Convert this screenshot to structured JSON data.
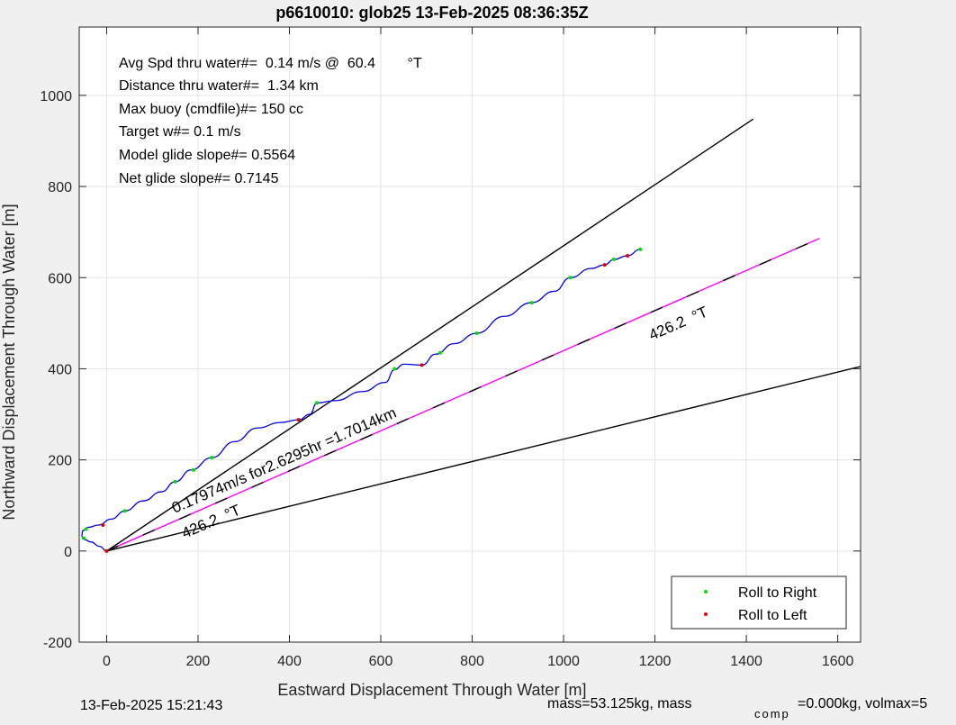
{
  "chart_data": {
    "type": "line",
    "title": "p6610010: glob25 13-Feb-2025 08:36:35Z",
    "xlabel": "Eastward Displacement Through Water [m]",
    "ylabel": "Northward Displacement Through Water [m]",
    "xlim": [
      -60,
      1650
    ],
    "ylim": [
      -200,
      1150
    ],
    "xticks": [
      0,
      200,
      400,
      600,
      800,
      1000,
      1200,
      1400,
      1600
    ],
    "yticks": [
      -200,
      0,
      200,
      400,
      600,
      800,
      1000
    ],
    "grid": true,
    "info_lines": [
      "Avg Spd thru water#=  0.14 m/s @  60.4        °T",
      "Distance thru water#=  1.34 km",
      "Max buoy (cmdfile)#= 150 cc",
      "Target w#= 0.1 m/s",
      "Model glide slope#= 0.5564",
      "Net glide slope#= 0.7145"
    ],
    "annotations": {
      "speed_label": "0.17974m/s for2.6295hr =1.7014km",
      "heading_label_1": "426.2  °T",
      "heading_label_2": "426.2  °T"
    },
    "footer_left": "13-Feb-2025 15:21:43",
    "footer_right_a": "mass=53.125kg, mass",
    "footer_sub": "comp",
    "footer_right_b": "=0.000kg, volmax=5",
    "legend": {
      "position": "bottom-right",
      "entries": [
        {
          "label": "Roll to Right",
          "color": "#00e000"
        },
        {
          "label": "Roll to Left",
          "color": "#e00000"
        }
      ]
    },
    "track": {
      "color": "#0000e0",
      "x": [
        0,
        -15,
        -35,
        -48,
        -55,
        -52,
        -40,
        -18,
        10,
        40,
        80,
        120,
        150,
        185,
        230,
        280,
        330,
        380,
        420,
        445,
        460,
        500,
        560,
        610,
        630,
        650,
        690,
        720,
        760,
        810,
        870,
        930,
        980,
        1015,
        1060,
        1090,
        1110,
        1140,
        1168
      ],
      "y": [
        0,
        10,
        20,
        25,
        32,
        45,
        52,
        57,
        70,
        88,
        110,
        130,
        152,
        178,
        205,
        240,
        270,
        282,
        288,
        300,
        325,
        330,
        350,
        370,
        398,
        410,
        408,
        432,
        455,
        478,
        515,
        545,
        570,
        600,
        620,
        628,
        640,
        648,
        662
      ]
    },
    "roll_right": {
      "x": [
        -50,
        -45,
        40,
        150,
        190,
        230,
        460,
        630,
        730,
        810,
        930,
        1015,
        1110,
        1168
      ],
      "y": [
        28,
        48,
        88,
        152,
        178,
        205,
        325,
        400,
        435,
        478,
        545,
        600,
        640,
        662
      ]
    },
    "roll_left": {
      "x": [
        0,
        -8,
        420,
        690,
        1090,
        1140
      ],
      "y": [
        0,
        57,
        288,
        408,
        628,
        648
      ]
    },
    "lines": [
      {
        "name": "upper",
        "color": "#000000",
        "x": [
          0,
          1415
        ],
        "y": [
          0,
          948
        ]
      },
      {
        "name": "middle",
        "color": "#ff00ff",
        "dashed_overlay": true,
        "x": [
          0,
          1560
        ],
        "y": [
          0,
          686
        ]
      },
      {
        "name": "lower",
        "color": "#000000",
        "x": [
          0,
          1650
        ],
        "y": [
          0,
          405
        ]
      }
    ]
  }
}
